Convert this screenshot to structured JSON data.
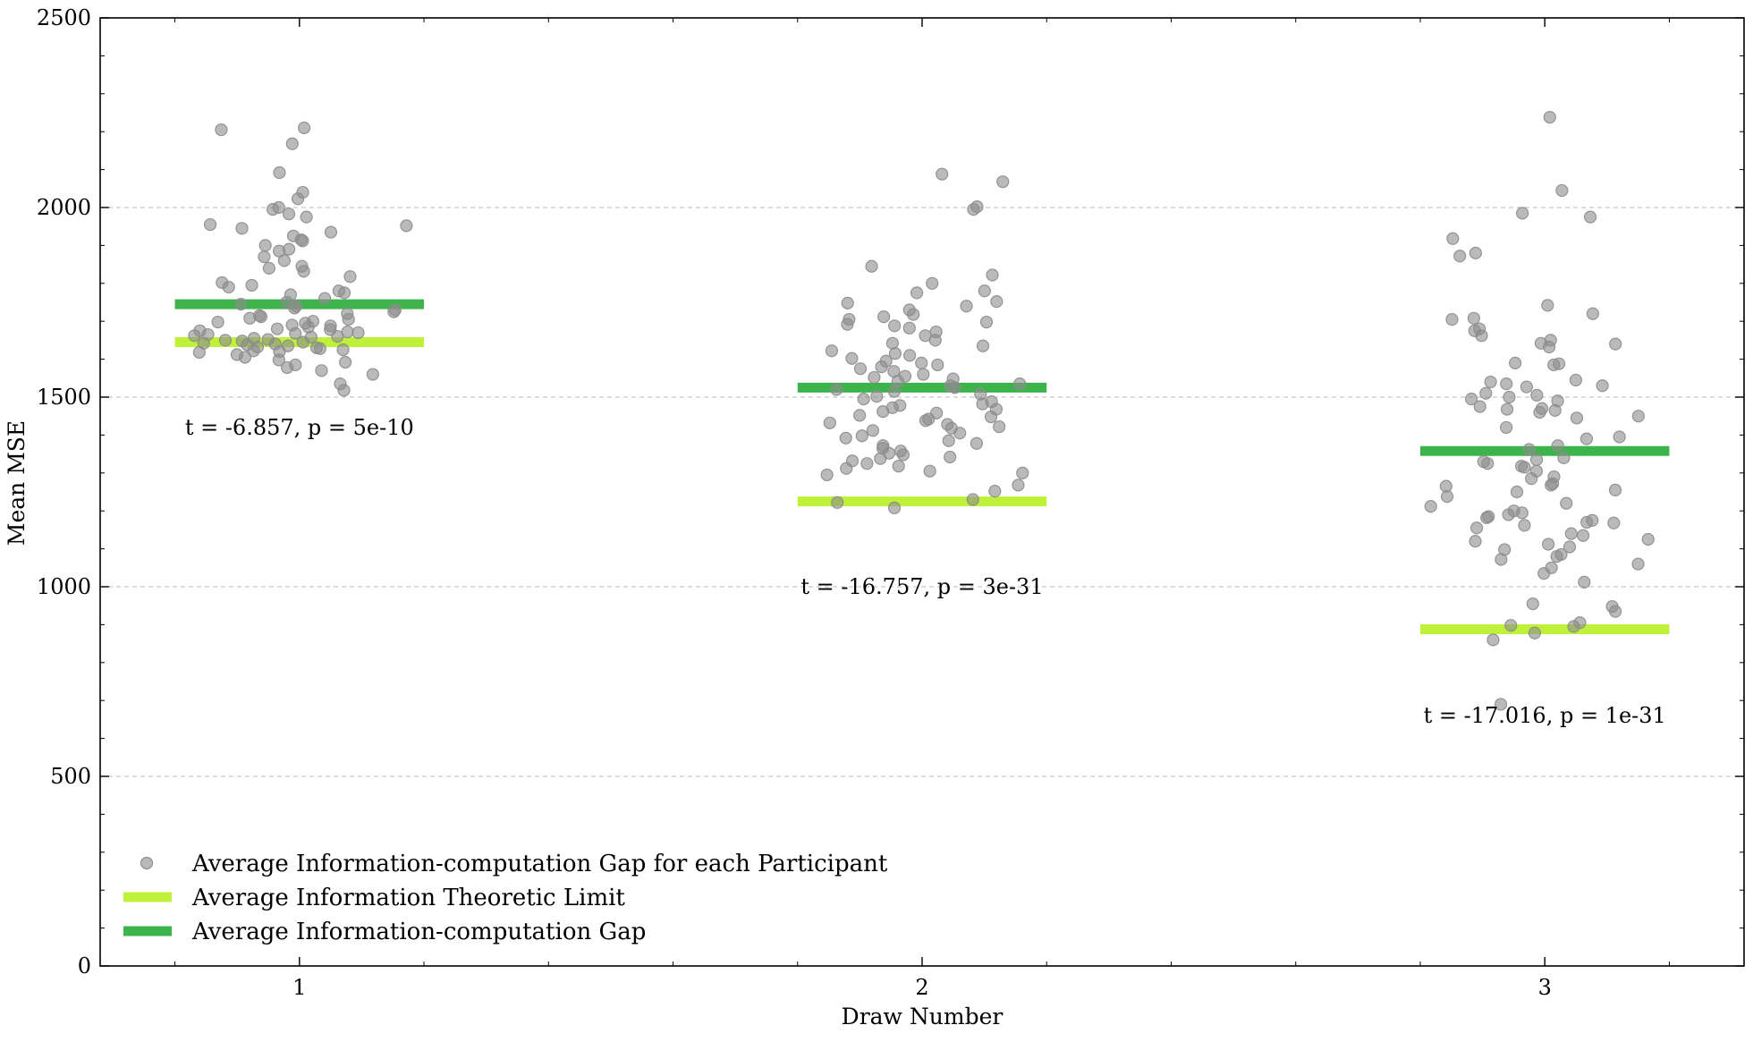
{
  "chart_data": {
    "type": "scatter",
    "title": "",
    "xlabel": "Draw Number",
    "ylabel": "Mean MSE",
    "xlim": [
      0.68,
      3.32
    ],
    "ylim": [
      0,
      2500
    ],
    "categories": [
      "1",
      "2",
      "3"
    ],
    "yticks": [
      "0",
      "500",
      "1000",
      "1500",
      "2000",
      "2500"
    ],
    "grid": "horizontal dashed",
    "legend_position": "lower-left",
    "colors": {
      "points": "#8c8c8c",
      "limit": "#bff03a",
      "gap": "#3cb44b"
    },
    "series": [
      {
        "name": "Average Information-computation Gap for each Participant",
        "kind": "points",
        "groups": [
          {
            "x": 1,
            "values": [
              2210,
              2205,
              2168,
              2092,
              2040,
              2023,
              2000,
              1995,
              1983,
              1975,
              1955,
              1952,
              1945,
              1935,
              1925,
              1915,
              1912,
              1900,
              1890,
              1885,
              1870,
              1860,
              1845,
              1840,
              1832,
              1818,
              1802,
              1795,
              1790,
              1780,
              1775,
              1770,
              1760,
              1750,
              1745,
              1740,
              1735,
              1730,
              1725,
              1720,
              1715,
              1712,
              1708,
              1705,
              1700,
              1698,
              1695,
              1690,
              1688,
              1685,
              1680,
              1678,
              1675,
              1672,
              1670,
              1668,
              1665,
              1662,
              1660,
              1658,
              1655,
              1652,
              1650,
              1648,
              1645,
              1642,
              1640,
              1638,
              1635,
              1632,
              1630,
              1628,
              1625,
              1622,
              1620,
              1618,
              1612,
              1605,
              1598,
              1592,
              1585,
              1578,
              1570,
              1560,
              1535,
              1518
            ]
          },
          {
            "x": 2,
            "values": [
              2088,
              2068,
              2002,
              1995,
              1845,
              1822,
              1800,
              1780,
              1775,
              1752,
              1748,
              1740,
              1730,
              1718,
              1712,
              1705,
              1698,
              1692,
              1688,
              1682,
              1672,
              1662,
              1650,
              1642,
              1635,
              1622,
              1615,
              1610,
              1602,
              1595,
              1590,
              1585,
              1580,
              1575,
              1568,
              1560,
              1555,
              1552,
              1548,
              1542,
              1535,
              1530,
              1525,
              1520,
              1515,
              1508,
              1502,
              1495,
              1488,
              1482,
              1478,
              1472,
              1468,
              1462,
              1458,
              1452,
              1448,
              1442,
              1438,
              1432,
              1428,
              1422,
              1418,
              1412,
              1405,
              1398,
              1392,
              1385,
              1378,
              1372,
              1365,
              1358,
              1352,
              1348,
              1342,
              1338,
              1332,
              1325,
              1318,
              1312,
              1305,
              1300,
              1295,
              1268,
              1252,
              1230,
              1222,
              1208
            ]
          },
          {
            "x": 3,
            "values": [
              2238,
              2045,
              1985,
              1975,
              1918,
              1880,
              1872,
              1742,
              1720,
              1708,
              1705,
              1680,
              1675,
              1662,
              1650,
              1642,
              1640,
              1632,
              1590,
              1588,
              1585,
              1545,
              1540,
              1535,
              1530,
              1527,
              1510,
              1505,
              1500,
              1495,
              1490,
              1475,
              1470,
              1468,
              1465,
              1460,
              1450,
              1445,
              1420,
              1395,
              1390,
              1372,
              1362,
              1340,
              1335,
              1330,
              1325,
              1318,
              1315,
              1305,
              1290,
              1285,
              1272,
              1268,
              1265,
              1255,
              1250,
              1238,
              1220,
              1212,
              1200,
              1195,
              1190,
              1185,
              1182,
              1175,
              1170,
              1168,
              1162,
              1155,
              1140,
              1135,
              1125,
              1120,
              1112,
              1105,
              1098,
              1085,
              1080,
              1072,
              1060,
              1050,
              1035,
              1012,
              955,
              948,
              935,
              905,
              898,
              895,
              878,
              860,
              690
            ]
          }
        ]
      },
      {
        "name": "Average Information Theoretic Limit",
        "kind": "hline",
        "values": [
          1645,
          1225,
          888
        ]
      },
      {
        "name": "Average Information-computation Gap",
        "kind": "hline",
        "values": [
          1745,
          1525,
          1358
        ]
      }
    ],
    "annotations": [
      {
        "text": "t = -6.857, p = 5e-10",
        "x": 1,
        "y": 1420
      },
      {
        "text": "t = -16.757, p = 3e-31",
        "x": 2,
        "y": 1000
      },
      {
        "text": "t = -17.016, p = 1e-31",
        "x": 3,
        "y": 660
      }
    ]
  }
}
